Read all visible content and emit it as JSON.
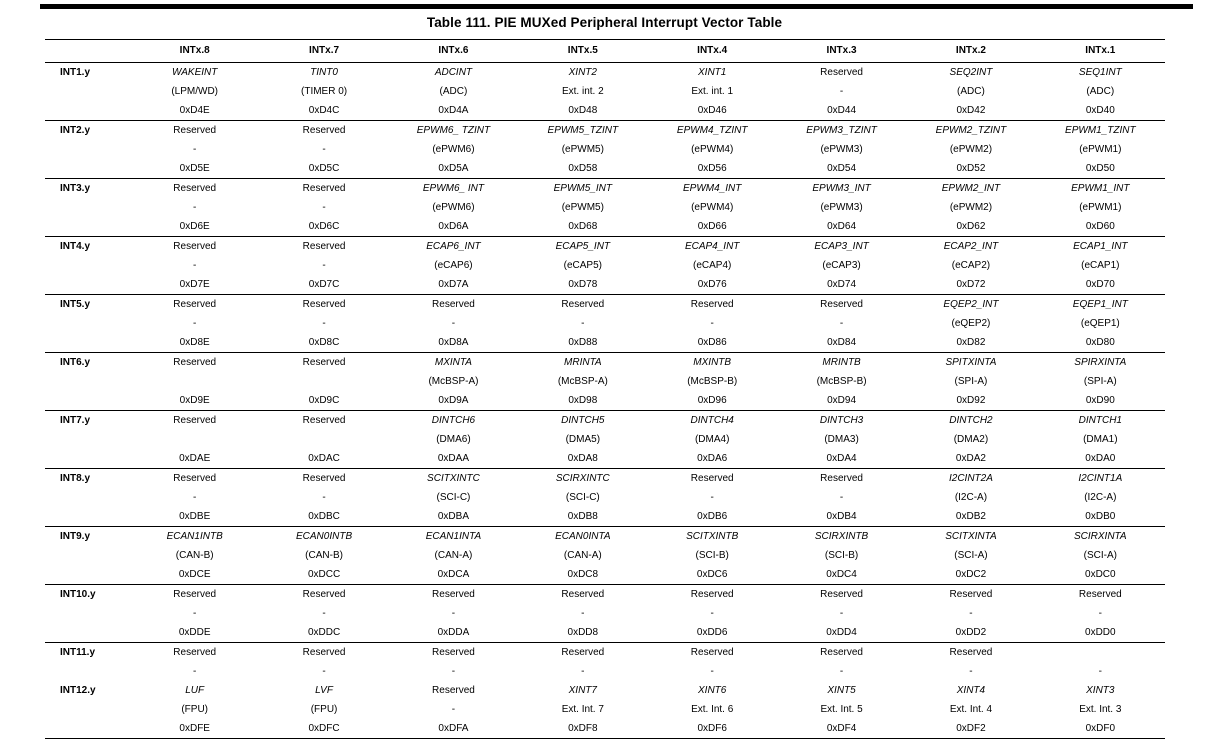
{
  "table": {
    "title": "Table 111. PIE MUXed Peripheral Interrupt Vector Table",
    "columns": [
      "INTx.8",
      "INTx.7",
      "INTx.6",
      "INTx.5",
      "INTx.4",
      "INTx.3",
      "INTx.2",
      "INTx.1"
    ],
    "rows": [
      {
        "label": "INT1.y",
        "cells": [
          {
            "n": "WAKEINT",
            "d": "(LPM/WD)",
            "a": "0xD4E",
            "i": true
          },
          {
            "n": "TINT0",
            "d": "(TIMER 0)",
            "a": "0xD4C",
            "i": true
          },
          {
            "n": "ADCINT",
            "d": "(ADC)",
            "a": "0xD4A",
            "i": true
          },
          {
            "n": "XINT2",
            "d": "Ext. int. 2",
            "a": "0xD48",
            "i": true
          },
          {
            "n": "XINT1",
            "d": "Ext. int. 1",
            "a": "0xD46",
            "i": true
          },
          {
            "n": "Reserved",
            "d": "-",
            "a": "0xD44",
            "i": false
          },
          {
            "n": "SEQ2INT",
            "d": "(ADC)",
            "a": "0xD42",
            "i": true
          },
          {
            "n": "SEQ1INT",
            "d": "(ADC)",
            "a": "0xD40",
            "i": true
          }
        ]
      },
      {
        "label": "INT2.y",
        "cells": [
          {
            "n": "Reserved",
            "d": "-",
            "a": "0xD5E",
            "i": false
          },
          {
            "n": "Reserved",
            "d": "-",
            "a": "0xD5C",
            "i": false
          },
          {
            "n": "EPWM6_ TZINT",
            "d": "(ePWM6)",
            "a": "0xD5A",
            "i": true
          },
          {
            "n": "EPWM5_TZINT",
            "d": "(ePWM5)",
            "a": "0xD58",
            "i": true
          },
          {
            "n": "EPWM4_TZINT",
            "d": "(ePWM4)",
            "a": "0xD56",
            "i": true
          },
          {
            "n": "EPWM3_TZINT",
            "d": "(ePWM3)",
            "a": "0xD54",
            "i": true
          },
          {
            "n": "EPWM2_TZINT",
            "d": "(ePWM2)",
            "a": "0xD52",
            "i": true
          },
          {
            "n": "EPWM1_TZINT",
            "d": "(ePWM1)",
            "a": "0xD50",
            "i": true
          }
        ]
      },
      {
        "label": "INT3.y",
        "cells": [
          {
            "n": "Reserved",
            "d": "-",
            "a": "0xD6E",
            "i": false
          },
          {
            "n": "Reserved",
            "d": "-",
            "a": "0xD6C",
            "i": false
          },
          {
            "n": "EPWM6_ INT",
            "d": "(ePWM6)",
            "a": "0xD6A",
            "i": true
          },
          {
            "n": "EPWM5_INT",
            "d": "(ePWM5)",
            "a": "0xD68",
            "i": true
          },
          {
            "n": "EPWM4_INT",
            "d": "(ePWM4)",
            "a": "0xD66",
            "i": true
          },
          {
            "n": "EPWM3_INT",
            "d": "(ePWM3)",
            "a": "0xD64",
            "i": true
          },
          {
            "n": "EPWM2_INT",
            "d": "(ePWM2)",
            "a": "0xD62",
            "i": true
          },
          {
            "n": "EPWM1_INT",
            "d": "(ePWM1)",
            "a": "0xD60",
            "i": true
          }
        ]
      },
      {
        "label": "INT4.y",
        "cells": [
          {
            "n": "Reserved",
            "d": "-",
            "a": "0xD7E",
            "i": false
          },
          {
            "n": "Reserved",
            "d": "-",
            "a": "0xD7C",
            "i": false
          },
          {
            "n": "ECAP6_INT",
            "d": "(eCAP6)",
            "a": "0xD7A",
            "i": true
          },
          {
            "n": "ECAP5_INT",
            "d": "(eCAP5)",
            "a": "0xD78",
            "i": true
          },
          {
            "n": "ECAP4_INT",
            "d": "(eCAP4)",
            "a": "0xD76",
            "i": true
          },
          {
            "n": "ECAP3_INT",
            "d": "(eCAP3)",
            "a": "0xD74",
            "i": true
          },
          {
            "n": "ECAP2_INT",
            "d": "(eCAP2)",
            "a": "0xD72",
            "i": true
          },
          {
            "n": "ECAP1_INT",
            "d": "(eCAP1)",
            "a": "0xD70",
            "i": true
          }
        ]
      },
      {
        "label": "INT5.y",
        "cells": [
          {
            "n": "Reserved",
            "d": "-",
            "a": "0xD8E",
            "i": false
          },
          {
            "n": "Reserved",
            "d": "-",
            "a": "0xD8C",
            "i": false
          },
          {
            "n": "Reserved",
            "d": "-",
            "a": "0xD8A",
            "i": false
          },
          {
            "n": "Reserved",
            "d": "-",
            "a": "0xD88",
            "i": false
          },
          {
            "n": "Reserved",
            "d": "-",
            "a": "0xD86",
            "i": false
          },
          {
            "n": "Reserved",
            "d": "-",
            "a": "0xD84",
            "i": false
          },
          {
            "n": "EQEP2_INT",
            "d": "(eQEP2)",
            "a": "0xD82",
            "i": true
          },
          {
            "n": "EQEP1_INT",
            "d": "(eQEP1)",
            "a": "0xD80",
            "i": true
          }
        ]
      },
      {
        "label": "INT6.y",
        "cells": [
          {
            "n": "Reserved",
            "d": "",
            "a": "0xD9E",
            "i": false
          },
          {
            "n": "Reserved",
            "d": "",
            "a": "0xD9C",
            "i": false
          },
          {
            "n": "MXINTA",
            "d": "(McBSP-A)",
            "a": "0xD9A",
            "i": true
          },
          {
            "n": "MRINTA",
            "d": "(McBSP-A)",
            "a": "0xD98",
            "i": true
          },
          {
            "n": "MXINTB",
            "d": "(McBSP-B)",
            "a": "0xD96",
            "i": true
          },
          {
            "n": "MRINTB",
            "d": "(McBSP-B)",
            "a": "0xD94",
            "i": true
          },
          {
            "n": "SPITXINTA",
            "d": "(SPI-A)",
            "a": "0xD92",
            "i": true
          },
          {
            "n": "SPIRXINTA",
            "d": "(SPI-A)",
            "a": "0xD90",
            "i": true
          }
        ]
      },
      {
        "label": "INT7.y",
        "cells": [
          {
            "n": "Reserved",
            "d": "",
            "a": "0xDAE",
            "i": false
          },
          {
            "n": "Reserved",
            "d": "",
            "a": "0xDAC",
            "i": false
          },
          {
            "n": "DINTCH6",
            "d": "(DMA6)",
            "a": "0xDAA",
            "i": true
          },
          {
            "n": "DINTCH5",
            "d": "(DMA5)",
            "a": "0xDA8",
            "i": true
          },
          {
            "n": "DINTCH4",
            "d": "(DMA4)",
            "a": "0xDA6",
            "i": true
          },
          {
            "n": "DINTCH3",
            "d": "(DMA3)",
            "a": "0xDA4",
            "i": true
          },
          {
            "n": "DINTCH2",
            "d": "(DMA2)",
            "a": "0xDA2",
            "i": true
          },
          {
            "n": "DINTCH1",
            "d": "(DMA1)",
            "a": "0xDA0",
            "i": true
          }
        ]
      },
      {
        "label": "INT8.y",
        "cells": [
          {
            "n": "Reserved",
            "d": "-",
            "a": "0xDBE",
            "i": false
          },
          {
            "n": "Reserved",
            "d": "-",
            "a": "0xDBC",
            "i": false
          },
          {
            "n": "SCITXINTC",
            "d": "(SCI-C)",
            "a": "0xDBA",
            "i": true
          },
          {
            "n": "SCIRXINTC",
            "d": "(SCI-C)",
            "a": "0xDB8",
            "i": true
          },
          {
            "n": "Reserved",
            "d": "-",
            "a": "0xDB6",
            "i": false
          },
          {
            "n": "Reserved",
            "d": "-",
            "a": "0xDB4",
            "i": false
          },
          {
            "n": "I2CINT2A",
            "d": "(I2C-A)",
            "a": "0xDB2",
            "i": true
          },
          {
            "n": "I2CINT1A",
            "d": "(I2C-A)",
            "a": "0xDB0",
            "i": true
          }
        ]
      },
      {
        "label": "INT9.y",
        "cells": [
          {
            "n": "ECAN1INTB",
            "d": "(CAN-B)",
            "a": "0xDCE",
            "i": true
          },
          {
            "n": "ECAN0INTB",
            "d": "(CAN-B)",
            "a": "0xDCC",
            "i": true
          },
          {
            "n": "ECAN1INTA",
            "d": "(CAN-A)",
            "a": "0xDCA",
            "i": true
          },
          {
            "n": "ECAN0INTA",
            "d": "(CAN-A)",
            "a": "0xDC8",
            "i": true
          },
          {
            "n": "SCITXINTB",
            "d": "(SCI-B)",
            "a": "0xDC6",
            "i": true
          },
          {
            "n": "SCIRXINTB",
            "d": "(SCI-B)",
            "a": "0xDC4",
            "i": true
          },
          {
            "n": "SCITXINTA",
            "d": "(SCI-A)",
            "a": "0xDC2",
            "i": true
          },
          {
            "n": "SCIRXINTA",
            "d": "(SCI-A)",
            "a": "0xDC0",
            "i": true
          }
        ]
      },
      {
        "label": "INT10.y",
        "cells": [
          {
            "n": "Reserved",
            "d": "-",
            "a": "0xDDE",
            "i": false
          },
          {
            "n": "Reserved",
            "d": "-",
            "a": "0xDDC",
            "i": false
          },
          {
            "n": "Reserved",
            "d": "-",
            "a": "0xDDA",
            "i": false
          },
          {
            "n": "Reserved",
            "d": "-",
            "a": "0xDD8",
            "i": false
          },
          {
            "n": "Reserved",
            "d": "-",
            "a": "0xDD6",
            "i": false
          },
          {
            "n": "Reserved",
            "d": "-",
            "a": "0xDD4",
            "i": false
          },
          {
            "n": "Reserved",
            "d": "-",
            "a": "0xDD2",
            "i": false
          },
          {
            "n": "Reserved",
            "d": "-",
            "a": "0xDD0",
            "i": false
          }
        ]
      },
      {
        "label": "INT11.y",
        "cells": [
          {
            "n": "Reserved",
            "d": "-",
            "i": false
          },
          {
            "n": "Reserved",
            "d": "-",
            "i": false
          },
          {
            "n": "Reserved",
            "d": "-",
            "i": false
          },
          {
            "n": "Reserved",
            "d": "-",
            "i": false
          },
          {
            "n": "Reserved",
            "d": "-",
            "i": false
          },
          {
            "n": "Reserved",
            "d": "-",
            "i": false
          },
          {
            "n": "Reserved",
            "d": "-",
            "i": false
          },
          {
            "n": "",
            "d": "-",
            "i": false
          }
        ]
      },
      {
        "label": "INT12.y",
        "cells": [
          {
            "n": "LUF",
            "d": "(FPU)",
            "a": "0xDFE",
            "i": true
          },
          {
            "n": "LVF",
            "d": "(FPU)",
            "a": "0xDFC",
            "i": true
          },
          {
            "n": "Reserved",
            "d": "-",
            "a": "0xDFA",
            "i": false
          },
          {
            "n": "XINT7",
            "d": "Ext. Int. 7",
            "a": "0xDF8",
            "i": true
          },
          {
            "n": "XINT6",
            "d": "Ext. Int. 6",
            "a": "0xDF6",
            "i": true
          },
          {
            "n": "XINT5",
            "d": "Ext. Int. 5",
            "a": "0xDF4",
            "i": true
          },
          {
            "n": "XINT4",
            "d": "Ext. Int. 4",
            "a": "0xDF2",
            "i": true
          },
          {
            "n": "XINT3",
            "d": "Ext. Int. 3",
            "a": "0xDF0",
            "i": true
          }
        ]
      }
    ]
  }
}
